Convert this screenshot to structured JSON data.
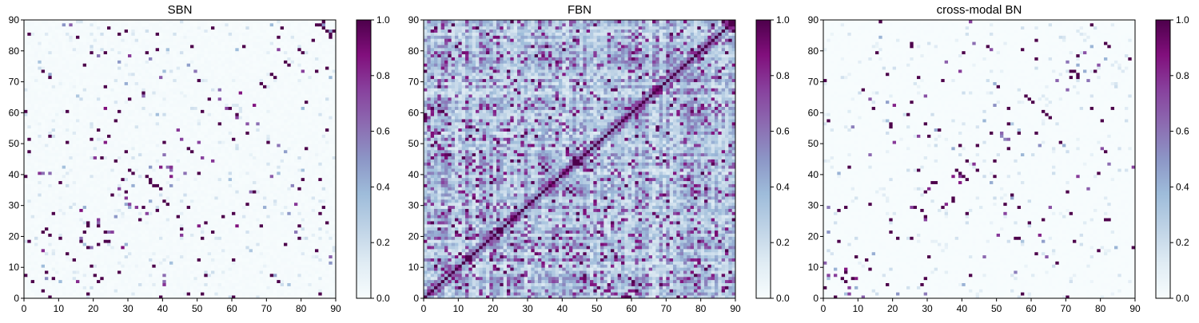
{
  "figure": {
    "colors": {
      "cmap_stops": [
        "#f7fcfd",
        "#e0ecf4",
        "#bfd3e6",
        "#9ebcda",
        "#8c96c6",
        "#8c6bb1",
        "#88419d",
        "#810f7c",
        "#4d004b"
      ],
      "frame": "#000000"
    }
  },
  "chart_data": [
    {
      "type": "heatmap",
      "title": "SBN",
      "size": 90,
      "xlim": [
        0,
        90
      ],
      "ylim": [
        0,
        90
      ],
      "xticks": [
        "0",
        "10",
        "20",
        "30",
        "40",
        "50",
        "60",
        "70",
        "80",
        "90"
      ],
      "yticks": [
        "0",
        "10",
        "20",
        "30",
        "40",
        "50",
        "60",
        "70",
        "80",
        "90"
      ],
      "colorbar": {
        "range": [
          0.0,
          1.0
        ],
        "ticks": [
          "0.0",
          "0.2",
          "0.4",
          "0.6",
          "0.8",
          "1.0"
        ]
      },
      "style": "sparse",
      "seed": 11,
      "density": 0.025,
      "baseline": 0.02
    },
    {
      "type": "heatmap",
      "title": "FBN",
      "size": 90,
      "xlim": [
        0,
        90
      ],
      "ylim": [
        0,
        90
      ],
      "xticks": [
        "0",
        "10",
        "20",
        "30",
        "40",
        "50",
        "60",
        "70",
        "80",
        "90"
      ],
      "yticks": [
        "0",
        "10",
        "20",
        "30",
        "40",
        "50",
        "60",
        "70",
        "80",
        "90"
      ],
      "colorbar": {
        "range": [
          0.0,
          1.0
        ],
        "ticks": [
          "0.0",
          "0.2",
          "0.4",
          "0.6",
          "0.8",
          "1.0"
        ]
      },
      "style": "dense",
      "seed": 27,
      "density": 0.0,
      "baseline": 0.3
    },
    {
      "type": "heatmap",
      "title": "cross-modal BN",
      "size": 90,
      "xlim": [
        0,
        90
      ],
      "ylim": [
        0,
        90
      ],
      "xticks": [
        "0",
        "10",
        "20",
        "30",
        "40",
        "50",
        "60",
        "70",
        "80",
        "90"
      ],
      "yticks": [
        "0",
        "10",
        "20",
        "30",
        "40",
        "50",
        "60",
        "70",
        "80",
        "90"
      ],
      "colorbar": {
        "range": [
          0.0,
          1.0
        ],
        "ticks": [
          "0.0",
          "0.2",
          "0.4",
          "0.6",
          "0.8",
          "1.0"
        ]
      },
      "style": "sparse",
      "seed": 53,
      "density": 0.02,
      "baseline": 0.005
    }
  ]
}
